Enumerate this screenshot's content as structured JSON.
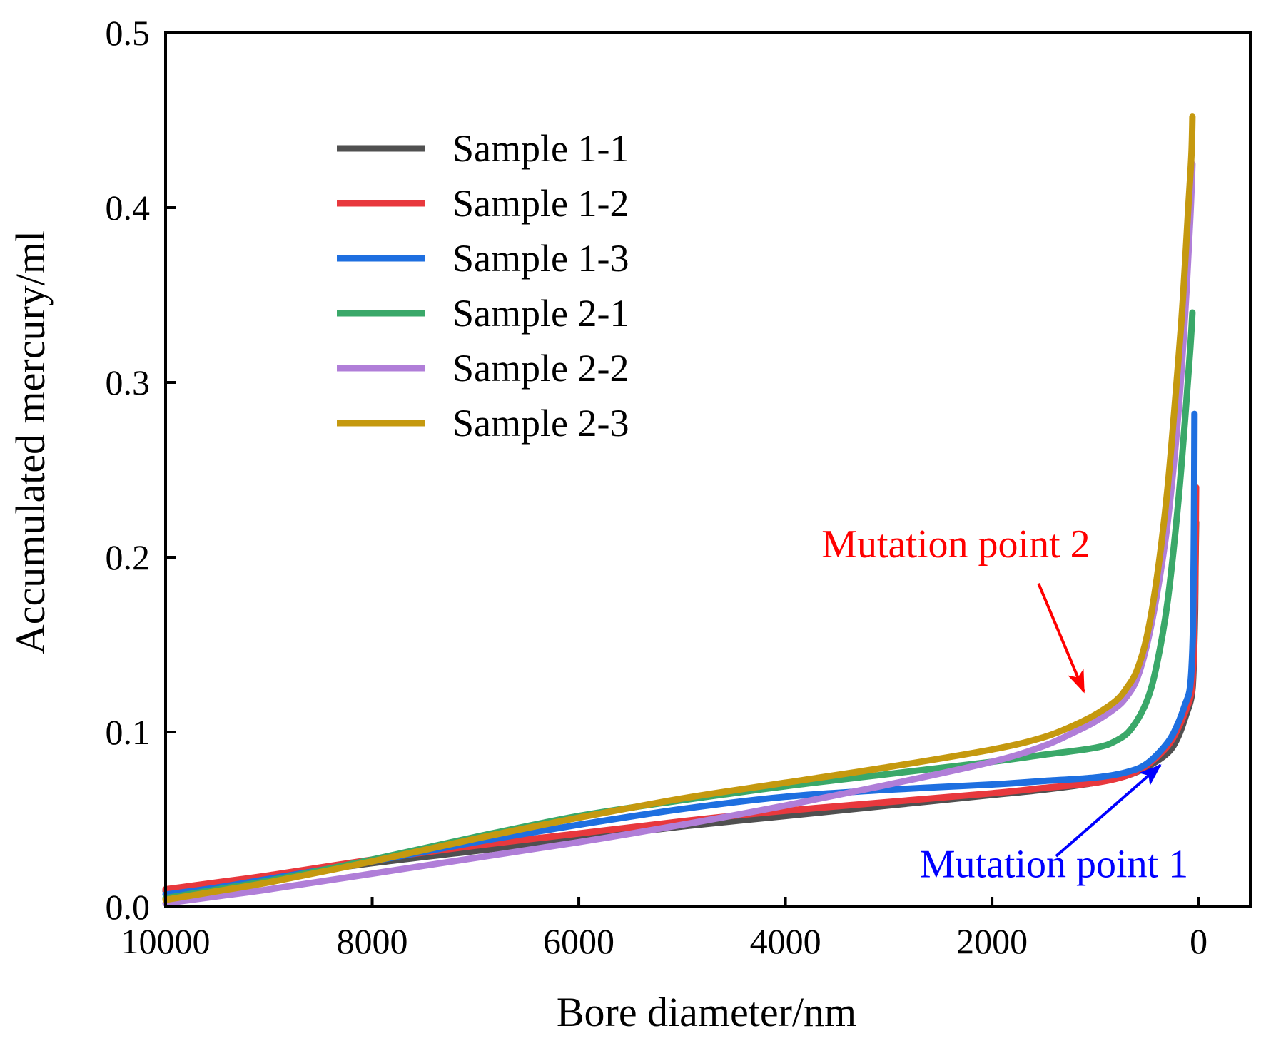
{
  "chart_data": {
    "type": "line",
    "title": "",
    "xlabel": "Bore diameter/nm",
    "ylabel": "Accumulated mercury/ml",
    "xlim": [
      10000,
      -500
    ],
    "ylim": [
      0,
      0.5
    ],
    "x_reversed": true,
    "x_ticks": [
      10000,
      8000,
      6000,
      4000,
      2000,
      0
    ],
    "x_tick_labels": [
      "10000",
      "8000",
      "6000",
      "4000",
      "2000",
      "0"
    ],
    "y_ticks": [
      0,
      0.1,
      0.2,
      0.3,
      0.4,
      0.5
    ],
    "y_tick_labels": [
      "0.0",
      "0.1",
      "0.2",
      "0.3",
      "0.4",
      "0.5"
    ],
    "grid": false,
    "legend_position": "top-left",
    "series": [
      {
        "name": "Sample 1-1",
        "color": "#505050",
        "points": [
          [
            10000,
            0.009
          ],
          [
            9500,
            0.013
          ],
          [
            9000,
            0.017
          ],
          [
            8000,
            0.025
          ],
          [
            7000,
            0.032
          ],
          [
            6000,
            0.039
          ],
          [
            5000,
            0.046
          ],
          [
            4000,
            0.052
          ],
          [
            3000,
            0.058
          ],
          [
            2000,
            0.064
          ],
          [
            1500,
            0.067
          ],
          [
            1000,
            0.071
          ],
          [
            700,
            0.075
          ],
          [
            500,
            0.08
          ],
          [
            300,
            0.088
          ],
          [
            200,
            0.097
          ],
          [
            120,
            0.11
          ],
          [
            70,
            0.12
          ],
          [
            50,
            0.135
          ],
          [
            35,
            0.17
          ],
          [
            30,
            0.2
          ],
          [
            25,
            0.22
          ]
        ]
      },
      {
        "name": "Sample 1-2",
        "color": "#e8383d",
        "points": [
          [
            10000,
            0.01
          ],
          [
            9500,
            0.014
          ],
          [
            9000,
            0.018
          ],
          [
            8000,
            0.027
          ],
          [
            7000,
            0.035
          ],
          [
            6000,
            0.042
          ],
          [
            5000,
            0.049
          ],
          [
            4000,
            0.055
          ],
          [
            3000,
            0.06
          ],
          [
            2000,
            0.065
          ],
          [
            1500,
            0.068
          ],
          [
            1000,
            0.071
          ],
          [
            700,
            0.075
          ],
          [
            500,
            0.081
          ],
          [
            300,
            0.092
          ],
          [
            200,
            0.102
          ],
          [
            120,
            0.113
          ],
          [
            70,
            0.123
          ],
          [
            50,
            0.14
          ],
          [
            35,
            0.18
          ],
          [
            25,
            0.24
          ]
        ]
      },
      {
        "name": "Sample 1-3",
        "color": "#1e6fe0",
        "points": [
          [
            10000,
            0.007
          ],
          [
            9500,
            0.011
          ],
          [
            9000,
            0.016
          ],
          [
            8000,
            0.026
          ],
          [
            7000,
            0.037
          ],
          [
            6000,
            0.047
          ],
          [
            5000,
            0.056
          ],
          [
            4000,
            0.063
          ],
          [
            3000,
            0.067
          ],
          [
            2000,
            0.07
          ],
          [
            1500,
            0.072
          ],
          [
            1000,
            0.074
          ],
          [
            700,
            0.077
          ],
          [
            500,
            0.082
          ],
          [
            300,
            0.094
          ],
          [
            200,
            0.105
          ],
          [
            130,
            0.116
          ],
          [
            90,
            0.123
          ],
          [
            70,
            0.135
          ],
          [
            55,
            0.16
          ],
          [
            45,
            0.22
          ],
          [
            40,
            0.282
          ]
        ]
      },
      {
        "name": "Sample 2-1",
        "color": "#3aa869",
        "points": [
          [
            10000,
            0.005
          ],
          [
            9500,
            0.01
          ],
          [
            9000,
            0.015
          ],
          [
            8000,
            0.027
          ],
          [
            7000,
            0.04
          ],
          [
            6000,
            0.052
          ],
          [
            5000,
            0.061
          ],
          [
            4000,
            0.069
          ],
          [
            3000,
            0.076
          ],
          [
            2000,
            0.083
          ],
          [
            1500,
            0.087
          ],
          [
            1000,
            0.091
          ],
          [
            800,
            0.095
          ],
          [
            650,
            0.102
          ],
          [
            500,
            0.118
          ],
          [
            400,
            0.14
          ],
          [
            300,
            0.175
          ],
          [
            200,
            0.23
          ],
          [
            130,
            0.28
          ],
          [
            80,
            0.32
          ],
          [
            60,
            0.34
          ]
        ]
      },
      {
        "name": "Sample 2-2",
        "color": "#b07ed8",
        "points": [
          [
            10000,
            0.002
          ],
          [
            9500,
            0.006
          ],
          [
            9000,
            0.01
          ],
          [
            8000,
            0.019
          ],
          [
            7000,
            0.028
          ],
          [
            6000,
            0.037
          ],
          [
            5000,
            0.047
          ],
          [
            4000,
            0.058
          ],
          [
            3000,
            0.07
          ],
          [
            2000,
            0.083
          ],
          [
            1500,
            0.092
          ],
          [
            1200,
            0.1
          ],
          [
            1000,
            0.106
          ],
          [
            800,
            0.114
          ],
          [
            700,
            0.12
          ],
          [
            600,
            0.13
          ],
          [
            500,
            0.15
          ],
          [
            400,
            0.18
          ],
          [
            300,
            0.22
          ],
          [
            200,
            0.28
          ],
          [
            130,
            0.34
          ],
          [
            80,
            0.395
          ],
          [
            60,
            0.425
          ]
        ]
      },
      {
        "name": "Sample 2-3",
        "color": "#c5990f",
        "points": [
          [
            10000,
            0.004
          ],
          [
            9500,
            0.009
          ],
          [
            9000,
            0.014
          ],
          [
            8000,
            0.026
          ],
          [
            7000,
            0.039
          ],
          [
            6000,
            0.051
          ],
          [
            5000,
            0.062
          ],
          [
            4000,
            0.071
          ],
          [
            3000,
            0.08
          ],
          [
            2000,
            0.09
          ],
          [
            1500,
            0.097
          ],
          [
            1200,
            0.104
          ],
          [
            1000,
            0.11
          ],
          [
            800,
            0.118
          ],
          [
            700,
            0.125
          ],
          [
            600,
            0.135
          ],
          [
            500,
            0.155
          ],
          [
            400,
            0.19
          ],
          [
            300,
            0.24
          ],
          [
            200,
            0.31
          ],
          [
            150,
            0.35
          ],
          [
            100,
            0.4
          ],
          [
            70,
            0.43
          ],
          [
            60,
            0.452
          ]
        ]
      }
    ],
    "annotations": [
      {
        "text": "Mutation point 2",
        "color": "#ff0000",
        "text_pos": [
          2350,
          0.2
        ],
        "arrow_from": [
          1550,
          0.185
        ],
        "arrow_to": [
          1110,
          0.123
        ]
      },
      {
        "text": "Mutation point 1",
        "color": "#0000ff",
        "text_pos": [
          1400,
          0.017
        ],
        "arrow_from": [
          1380,
          0.029
        ],
        "arrow_to": [
          370,
          0.081
        ]
      }
    ]
  }
}
